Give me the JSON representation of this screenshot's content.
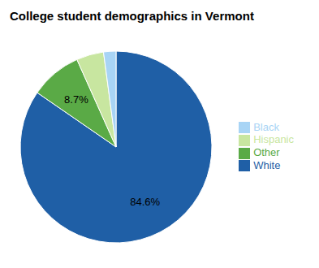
{
  "chart_data": {
    "type": "pie",
    "title": "College student demographics in Vermont",
    "categories": [
      "White",
      "Other",
      "Hispanic",
      "Black"
    ],
    "values": [
      84.6,
      8.7,
      4.6,
      2.1
    ],
    "value_labels": [
      "84.6%",
      "8.7%",
      null,
      null
    ],
    "colors": [
      "#1f5fa6",
      "#5aaa46",
      "#c8e6a0",
      "#a8d4f5"
    ],
    "legend": "right"
  }
}
